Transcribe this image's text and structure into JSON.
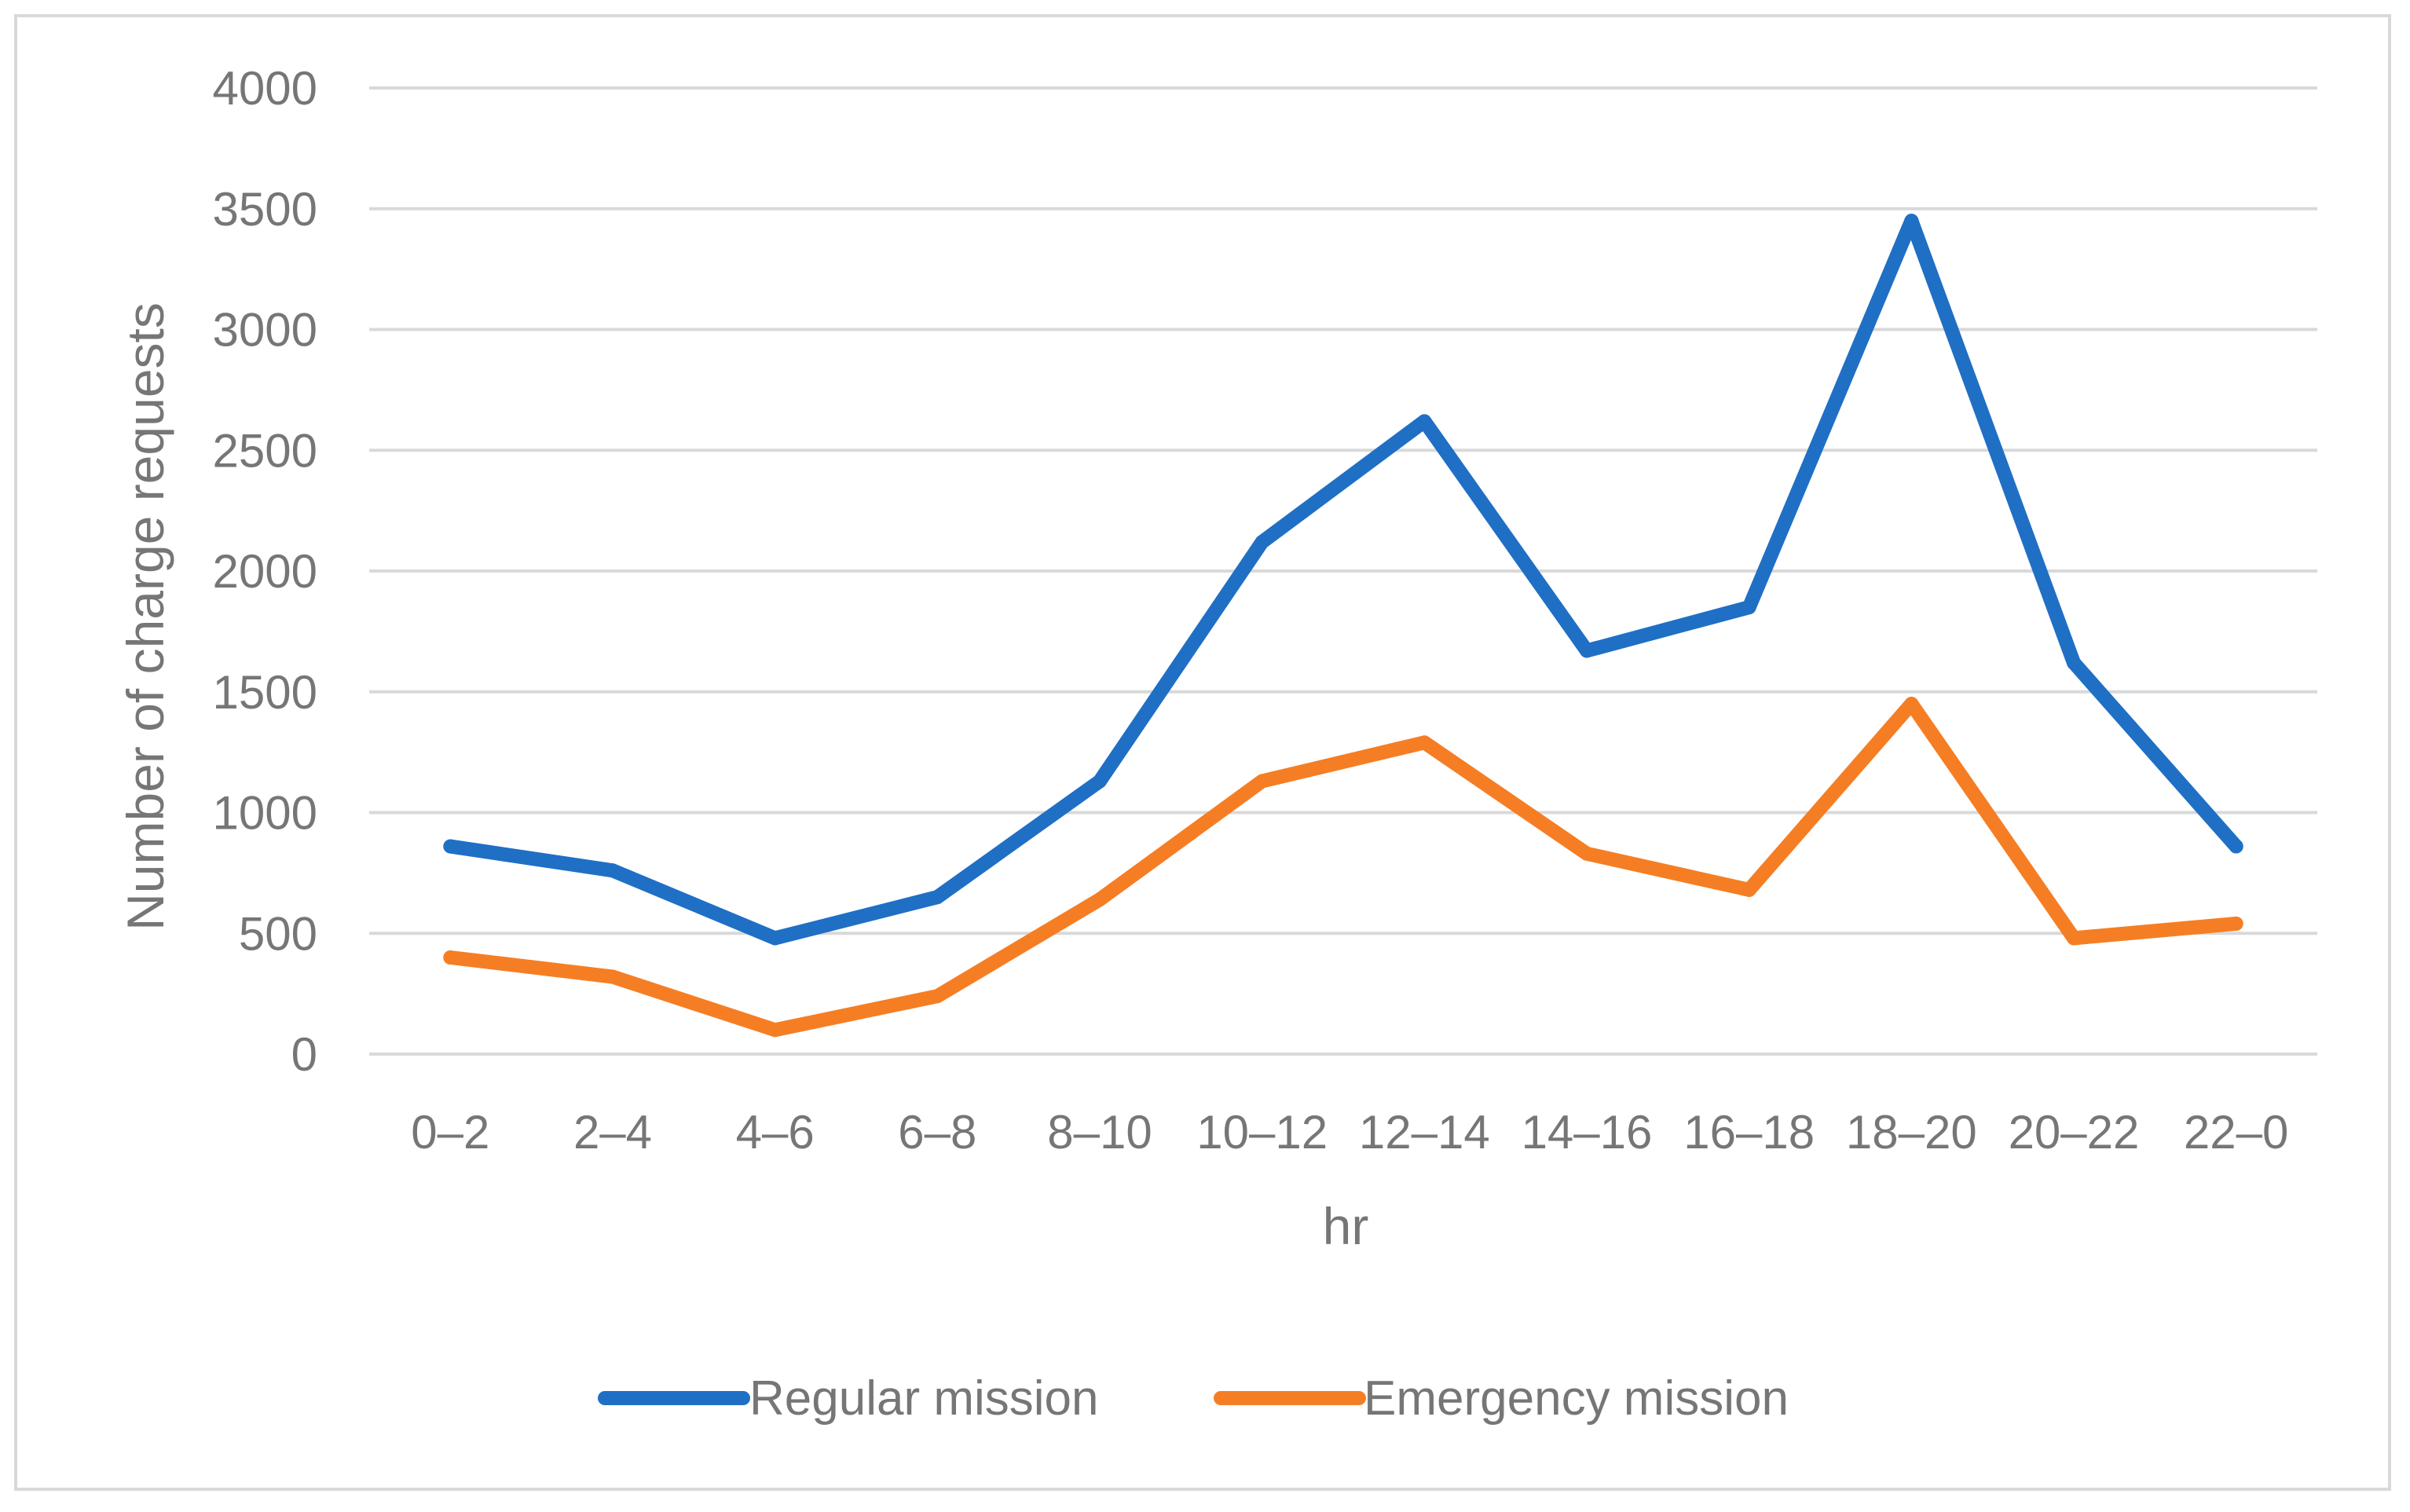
{
  "chart_data": {
    "type": "line",
    "title": "",
    "xlabel": "hr",
    "ylabel": "Number of charge requests",
    "categories": [
      "0–2",
      "2–4",
      "4–6",
      "6–8",
      "8–10",
      "10–12",
      "12–14",
      "14–16",
      "16–18",
      "18–20",
      "20–22",
      "22–0"
    ],
    "yticks": [
      0,
      500,
      1000,
      1500,
      2000,
      2500,
      3000,
      3500,
      4000
    ],
    "ylim": [
      0,
      4000
    ],
    "grid": true,
    "legend_position": "bottom",
    "series": [
      {
        "name": "Regular mission",
        "color": "#1f6fc5",
        "values": [
          860,
          760,
          480,
          650,
          1130,
          2120,
          2620,
          1670,
          1850,
          3450,
          1620,
          860
        ]
      },
      {
        "name": "Emergency mission",
        "color": "#f57e24",
        "values": [
          400,
          320,
          100,
          240,
          640,
          1130,
          1290,
          830,
          680,
          1450,
          480,
          540
        ]
      }
    ]
  }
}
